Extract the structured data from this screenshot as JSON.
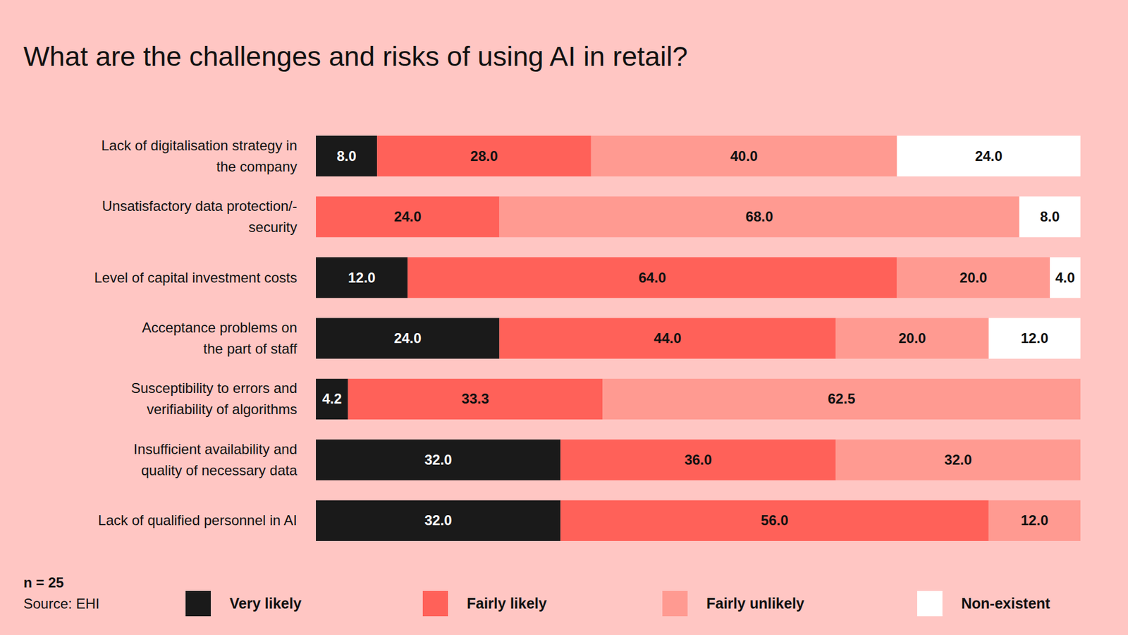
{
  "chart_data": {
    "type": "bar",
    "orientation": "horizontal",
    "stacked": true,
    "data_labels": true,
    "tick_labels": "y",
    "legend": "bottom",
    "title": "What are the challenges and risks of using AI in retail?",
    "annotations": [
      "n = 25",
      "Source: EHI"
    ],
    "xlim": [
      0,
      100
    ],
    "categories": [
      "Lack of digitalisation strategy in\nthe company",
      "Unsatisfactory data protection/-\nsecurity",
      "Level of capital investment costs",
      "Acceptance problems on\nthe part of staff",
      "Susceptibility to errors and\nverifiability of algorithms",
      "Insufficient availability and\nquality of necessary data",
      "Lack of qualified personnel in AI"
    ],
    "series": [
      {
        "name": "Very likely",
        "color": "#1a1a1a",
        "values": [
          8.0,
          null,
          12.0,
          24.0,
          4.2,
          32.0,
          32.0
        ],
        "value_labels": [
          "8.0",
          null,
          "12.0",
          "24.0",
          "4.2",
          "32.0",
          "32.0"
        ]
      },
      {
        "name": "Fairly likely",
        "color": "#ff6159",
        "values": [
          28.0,
          24.0,
          64.0,
          44.0,
          33.3,
          36.0,
          56.0
        ],
        "value_labels": [
          "28.0",
          "24.0",
          "64.0",
          "44.0",
          "33.3",
          "36.0",
          "56.0"
        ]
      },
      {
        "name": "Fairly unlikely",
        "color": "#ff9a91",
        "values": [
          40.0,
          68.0,
          20.0,
          20.0,
          62.5,
          32.0,
          12.0
        ],
        "value_labels": [
          "40.0",
          "68.0",
          "20.0",
          "20.0",
          "62.5",
          "32.0",
          "12.0"
        ]
      },
      {
        "name": "Non-existent",
        "color": "#ffffff",
        "values": [
          24.0,
          8.0,
          4.0,
          12.0,
          null,
          null,
          null
        ],
        "value_labels": [
          "24.0",
          "8.0",
          "4.0",
          "12.0",
          null,
          null,
          null
        ]
      }
    ]
  }
}
